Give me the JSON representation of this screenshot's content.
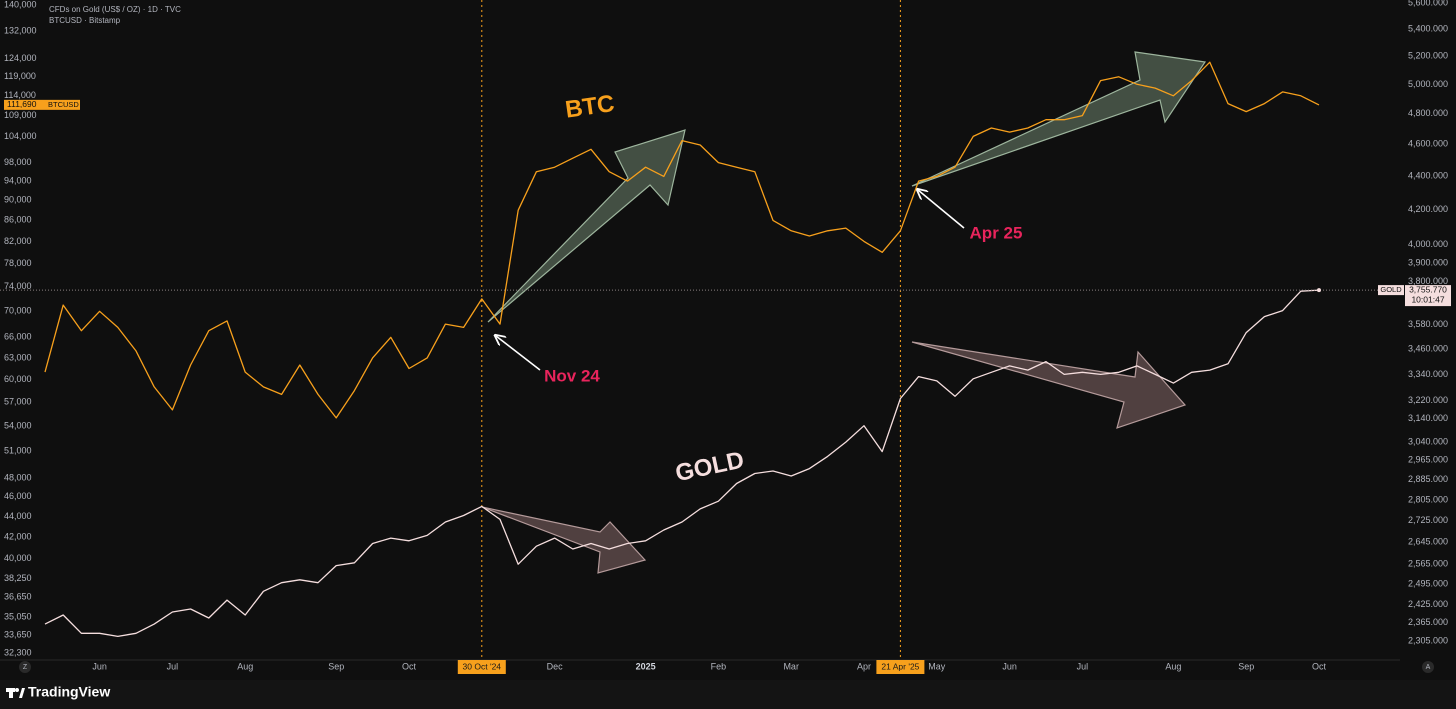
{
  "brand": "TradingView",
  "corner_buttons": [
    "Z",
    "A"
  ],
  "chart_data": {
    "type": "line",
    "title": "CFDs on Gold (US$ / OZ) · 1D · TVC",
    "subtitle": "BTCUSD · Bitstamp",
    "annotations": [
      "BTC",
      "GOLD",
      "Nov 24",
      "Apr 25"
    ],
    "log_scale": true,
    "grid": false,
    "vertical_markers": [
      "30 Oct '24",
      "21 Apr '25"
    ],
    "categories": [
      null,
      null,
      null,
      "Jun",
      null,
      null,
      null,
      "Jul",
      null,
      null,
      null,
      "Aug",
      null,
      null,
      null,
      null,
      "Sep",
      null,
      null,
      null,
      "Oct",
      null,
      null,
      null,
      "30 Oct '24",
      null,
      null,
      null,
      "Dec",
      null,
      null,
      null,
      null,
      "2025",
      null,
      null,
      null,
      "Feb",
      null,
      null,
      null,
      "Mar",
      null,
      null,
      null,
      "Apr",
      null,
      "21 Apr '25",
      null,
      "May",
      null,
      null,
      null,
      "Jun",
      null,
      null,
      null,
      "Jul",
      null,
      null,
      null,
      null,
      "Aug",
      null,
      null,
      null,
      "Sep",
      null,
      null,
      null,
      "Oct"
    ],
    "series": [
      {
        "name": "BTCUSD",
        "color": "#f7a01c",
        "axis": "y",
        "last_label": "111,690",
        "values": [
          61000,
          71000,
          67000,
          70000,
          67500,
          64000,
          59000,
          56000,
          62000,
          67000,
          68500,
          61000,
          59000,
          58000,
          62000,
          58000,
          55000,
          58500,
          63000,
          66000,
          61500,
          63000,
          68000,
          67500,
          72000,
          68000,
          88000,
          96000,
          97000,
          99000,
          101000,
          96000,
          94000,
          97000,
          95000,
          103000,
          102000,
          98000,
          97000,
          96000,
          86000,
          84000,
          83000,
          84000,
          84500,
          82000,
          80000,
          84000,
          94000,
          95000,
          97000,
          104000,
          106000,
          105000,
          106000,
          108000,
          108000,
          109000,
          118000,
          119000,
          117000,
          116000,
          114000,
          118000,
          123000,
          112000,
          110000,
          112000,
          115000,
          114000,
          111690
        ]
      },
      {
        "name": "GOLD",
        "color": "#f5dede",
        "axis": "y2",
        "last_label": "3,755.770",
        "countdown": "10:01:47",
        "values": [
          2360,
          2390,
          2330,
          2330,
          2320,
          2330,
          2360,
          2400,
          2410,
          2380,
          2440,
          2390,
          2470,
          2500,
          2510,
          2500,
          2560,
          2570,
          2640,
          2660,
          2650,
          2670,
          2720,
          2745,
          2780,
          2730,
          2565,
          2630,
          2660,
          2620,
          2640,
          2620,
          2640,
          2650,
          2690,
          2720,
          2770,
          2800,
          2870,
          2910,
          2920,
          2900,
          2930,
          2980,
          3040,
          3110,
          3000,
          3230,
          3330,
          3310,
          3240,
          3320,
          3350,
          3380,
          3360,
          3400,
          3340,
          3350,
          3340,
          3350,
          3380,
          3340,
          3300,
          3350,
          3360,
          3390,
          3540,
          3620,
          3650,
          3750,
          3755.77
        ]
      }
    ],
    "ylim": [
      31800,
      141600
    ],
    "yticks": [
      {
        "value": 32300,
        "label": "32,300"
      },
      {
        "value": 33650,
        "label": "33,650"
      },
      {
        "value": 35050,
        "label": "35,050"
      },
      {
        "value": 36650,
        "label": "36,650"
      },
      {
        "value": 38250,
        "label": "38,250"
      },
      {
        "value": 40000,
        "label": "40,000"
      },
      {
        "value": 42000,
        "label": "42,000"
      },
      {
        "value": 44000,
        "label": "44,000"
      },
      {
        "value": 46000,
        "label": "46,000"
      },
      {
        "value": 48000,
        "label": "48,000"
      },
      {
        "value": 51000,
        "label": "51,000"
      },
      {
        "value": 54000,
        "label": "54,000"
      },
      {
        "value": 57000,
        "label": "57,000"
      },
      {
        "value": 60000,
        "label": "60,000"
      },
      {
        "value": 63000,
        "label": "63,000"
      },
      {
        "value": 66000,
        "label": "66,000"
      },
      {
        "value": 70000,
        "label": "70,000"
      },
      {
        "value": 74000,
        "label": "74,000"
      },
      {
        "value": 78000,
        "label": "78,000"
      },
      {
        "value": 82000,
        "label": "82,000"
      },
      {
        "value": 86000,
        "label": "86,000"
      },
      {
        "value": 90000,
        "label": "90,000"
      },
      {
        "value": 94000,
        "label": "94,000"
      },
      {
        "value": 98000,
        "label": "98,000"
      },
      {
        "value": 104000,
        "label": "104,000"
      },
      {
        "value": 109000,
        "label": "109,000"
      },
      {
        "value": 114000,
        "label": "114,000"
      },
      {
        "value": 119000,
        "label": "119,000"
      },
      {
        "value": 124000,
        "label": "124,000"
      },
      {
        "value": 132000,
        "label": "132,000"
      },
      {
        "value": 140000,
        "label": "140,000"
      }
    ],
    "y2lim": [
      2245,
      5623
    ],
    "y2ticks": [
      {
        "value": 2305,
        "label": "2,305.000"
      },
      {
        "value": 2365,
        "label": "2,365.000"
      },
      {
        "value": 2425,
        "label": "2,425.000"
      },
      {
        "value": 2495,
        "label": "2,495.000"
      },
      {
        "value": 2565,
        "label": "2,565.000"
      },
      {
        "value": 2645,
        "label": "2,645.000"
      },
      {
        "value": 2725,
        "label": "2,725.000"
      },
      {
        "value": 2805,
        "label": "2,805.000"
      },
      {
        "value": 2885,
        "label": "2,885.000"
      },
      {
        "value": 2965,
        "label": "2,965.000"
      },
      {
        "value": 3040,
        "label": "3,040.000"
      },
      {
        "value": 3140,
        "label": "3,140.000"
      },
      {
        "value": 3220,
        "label": "3,220.000"
      },
      {
        "value": 3340,
        "label": "3,340.000"
      },
      {
        "value": 3460,
        "label": "3,460.000"
      },
      {
        "value": 3580,
        "label": "3,580.000"
      },
      {
        "value": 3800,
        "label": "3,800.000"
      },
      {
        "value": 3900,
        "label": "3,900.000"
      },
      {
        "value": 4000,
        "label": "4,000.000"
      },
      {
        "value": 4200,
        "label": "4,200.000"
      },
      {
        "value": 4400,
        "label": "4,400.000"
      },
      {
        "value": 4600,
        "label": "4,600.000"
      },
      {
        "value": 4800,
        "label": "4,800.000"
      },
      {
        "value": 5000,
        "label": "5,000.000"
      },
      {
        "value": 5200,
        "label": "5,200.000"
      },
      {
        "value": 5400,
        "label": "5,400.000"
      },
      {
        "value": 5600,
        "label": "5,600.000"
      }
    ]
  }
}
